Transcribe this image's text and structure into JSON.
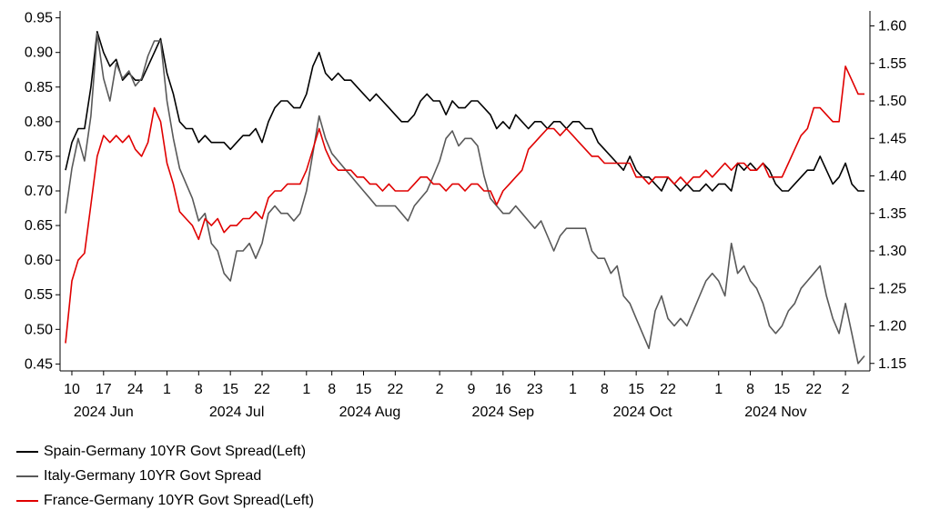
{
  "chart_data": {
    "type": "line",
    "title": "",
    "left_axis": {
      "ylim": [
        0.44,
        0.96
      ],
      "ticks": [
        0.45,
        0.5,
        0.55,
        0.6,
        0.65,
        0.7,
        0.75,
        0.8,
        0.85,
        0.9,
        0.95
      ],
      "tick_labels": [
        "0.45",
        "0.50",
        "0.55",
        "0.60",
        "0.65",
        "0.70",
        "0.75",
        "0.80",
        "0.85",
        "0.90",
        "0.95"
      ]
    },
    "right_axis": {
      "ylim": [
        1.14,
        1.62
      ],
      "ticks": [
        1.15,
        1.2,
        1.25,
        1.3,
        1.35,
        1.4,
        1.45,
        1.5,
        1.55,
        1.6
      ],
      "tick_labels": [
        "1.15",
        "1.20",
        "1.25",
        "1.30",
        "1.35",
        "1.40",
        "1.45",
        "1.50",
        "1.55",
        "1.60"
      ]
    },
    "x_axis": {
      "n_points": 127,
      "ticks": [
        {
          "i": 1,
          "label": "10"
        },
        {
          "i": 6,
          "label": "17"
        },
        {
          "i": 11,
          "label": "24"
        },
        {
          "i": 16,
          "label": "1"
        },
        {
          "i": 21,
          "label": "8"
        },
        {
          "i": 26,
          "label": "15"
        },
        {
          "i": 31,
          "label": "22"
        },
        {
          "i": 38,
          "label": "1"
        },
        {
          "i": 42,
          "label": "8"
        },
        {
          "i": 47,
          "label": "15"
        },
        {
          "i": 52,
          "label": "22"
        },
        {
          "i": 59,
          "label": "2"
        },
        {
          "i": 64,
          "label": "9"
        },
        {
          "i": 69,
          "label": "16"
        },
        {
          "i": 74,
          "label": "23"
        },
        {
          "i": 80,
          "label": "1"
        },
        {
          "i": 85,
          "label": "8"
        },
        {
          "i": 90,
          "label": "15"
        },
        {
          "i": 95,
          "label": "22"
        },
        {
          "i": 103,
          "label": "1"
        },
        {
          "i": 108,
          "label": "8"
        },
        {
          "i": 113,
          "label": "15"
        },
        {
          "i": 118,
          "label": "22"
        },
        {
          "i": 123,
          "label": "2"
        }
      ],
      "months": [
        {
          "i": 6,
          "label": "2024 Jun"
        },
        {
          "i": 27,
          "label": "2024 Jul"
        },
        {
          "i": 48,
          "label": "2024 Aug"
        },
        {
          "i": 69,
          "label": "2024 Sep"
        },
        {
          "i": 91,
          "label": "2024 Oct"
        },
        {
          "i": 112,
          "label": "2024 Nov"
        }
      ]
    },
    "series": [
      {
        "name": "Spain-Germany 10YR Govt Spread(Left)",
        "axis": "left",
        "color": "#000000",
        "values": [
          0.73,
          0.77,
          0.79,
          0.79,
          0.85,
          0.93,
          0.9,
          0.88,
          0.89,
          0.86,
          0.87,
          0.86,
          0.86,
          0.88,
          0.9,
          0.92,
          0.87,
          0.84,
          0.8,
          0.79,
          0.79,
          0.77,
          0.78,
          0.77,
          0.77,
          0.77,
          0.76,
          0.77,
          0.78,
          0.78,
          0.79,
          0.77,
          0.8,
          0.82,
          0.83,
          0.83,
          0.82,
          0.82,
          0.84,
          0.88,
          0.9,
          0.87,
          0.86,
          0.87,
          0.86,
          0.86,
          0.85,
          0.84,
          0.83,
          0.84,
          0.83,
          0.82,
          0.81,
          0.8,
          0.8,
          0.81,
          0.83,
          0.84,
          0.83,
          0.83,
          0.81,
          0.83,
          0.82,
          0.82,
          0.83,
          0.83,
          0.82,
          0.81,
          0.79,
          0.8,
          0.79,
          0.81,
          0.8,
          0.79,
          0.8,
          0.8,
          0.79,
          0.8,
          0.8,
          0.79,
          0.8,
          0.8,
          0.79,
          0.79,
          0.77,
          0.76,
          0.75,
          0.74,
          0.73,
          0.75,
          0.73,
          0.72,
          0.72,
          0.71,
          0.7,
          0.72,
          0.71,
          0.7,
          0.71,
          0.7,
          0.7,
          0.71,
          0.7,
          0.71,
          0.71,
          0.7,
          0.74,
          0.73,
          0.74,
          0.73,
          0.74,
          0.73,
          0.71,
          0.7,
          0.7,
          0.71,
          0.72,
          0.73,
          0.73,
          0.75,
          0.73,
          0.71,
          0.72,
          0.74,
          0.71,
          0.7,
          0.7
        ]
      },
      {
        "name": "Italy-Germany 10YR Govt Spread",
        "axis": "right",
        "color": "#595959",
        "values": [
          1.35,
          1.41,
          1.45,
          1.42,
          1.48,
          1.59,
          1.53,
          1.5,
          1.55,
          1.53,
          1.54,
          1.52,
          1.53,
          1.56,
          1.58,
          1.58,
          1.5,
          1.45,
          1.41,
          1.39,
          1.37,
          1.34,
          1.35,
          1.31,
          1.3,
          1.27,
          1.26,
          1.3,
          1.3,
          1.31,
          1.29,
          1.31,
          1.35,
          1.36,
          1.35,
          1.35,
          1.34,
          1.35,
          1.38,
          1.43,
          1.48,
          1.45,
          1.43,
          1.42,
          1.41,
          1.4,
          1.39,
          1.38,
          1.37,
          1.36,
          1.36,
          1.36,
          1.36,
          1.35,
          1.34,
          1.36,
          1.37,
          1.38,
          1.4,
          1.42,
          1.45,
          1.46,
          1.44,
          1.45,
          1.45,
          1.44,
          1.4,
          1.37,
          1.36,
          1.35,
          1.35,
          1.36,
          1.35,
          1.34,
          1.33,
          1.34,
          1.32,
          1.3,
          1.32,
          1.33,
          1.33,
          1.33,
          1.33,
          1.3,
          1.29,
          1.29,
          1.27,
          1.28,
          1.24,
          1.23,
          1.21,
          1.19,
          1.17,
          1.22,
          1.24,
          1.21,
          1.2,
          1.21,
          1.2,
          1.22,
          1.24,
          1.26,
          1.27,
          1.26,
          1.24,
          1.31,
          1.27,
          1.28,
          1.26,
          1.25,
          1.23,
          1.2,
          1.19,
          1.2,
          1.22,
          1.23,
          1.25,
          1.26,
          1.27,
          1.28,
          1.24,
          1.21,
          1.19,
          1.23,
          1.19,
          1.15,
          1.16
        ]
      },
      {
        "name": "France-Germany 10YR Govt Spread(Left)",
        "axis": "left",
        "color": "#e00000",
        "values": [
          0.48,
          0.57,
          0.6,
          0.61,
          0.68,
          0.75,
          0.78,
          0.77,
          0.78,
          0.77,
          0.78,
          0.76,
          0.75,
          0.77,
          0.82,
          0.8,
          0.74,
          0.71,
          0.67,
          0.66,
          0.65,
          0.63,
          0.66,
          0.65,
          0.66,
          0.64,
          0.65,
          0.65,
          0.66,
          0.66,
          0.67,
          0.66,
          0.69,
          0.7,
          0.7,
          0.71,
          0.71,
          0.71,
          0.73,
          0.76,
          0.79,
          0.76,
          0.74,
          0.73,
          0.73,
          0.73,
          0.72,
          0.72,
          0.71,
          0.71,
          0.7,
          0.71,
          0.7,
          0.7,
          0.7,
          0.71,
          0.72,
          0.72,
          0.71,
          0.71,
          0.7,
          0.71,
          0.71,
          0.7,
          0.71,
          0.71,
          0.7,
          0.7,
          0.68,
          0.7,
          0.71,
          0.72,
          0.73,
          0.76,
          0.77,
          0.78,
          0.79,
          0.79,
          0.78,
          0.79,
          0.78,
          0.77,
          0.76,
          0.75,
          0.75,
          0.74,
          0.74,
          0.74,
          0.74,
          0.74,
          0.72,
          0.72,
          0.71,
          0.72,
          0.72,
          0.72,
          0.71,
          0.72,
          0.71,
          0.72,
          0.72,
          0.73,
          0.72,
          0.73,
          0.74,
          0.73,
          0.74,
          0.74,
          0.73,
          0.73,
          0.74,
          0.72,
          0.72,
          0.72,
          0.74,
          0.76,
          0.78,
          0.79,
          0.82,
          0.82,
          0.81,
          0.8,
          0.8,
          0.88,
          0.86,
          0.84,
          0.84
        ]
      }
    ]
  }
}
